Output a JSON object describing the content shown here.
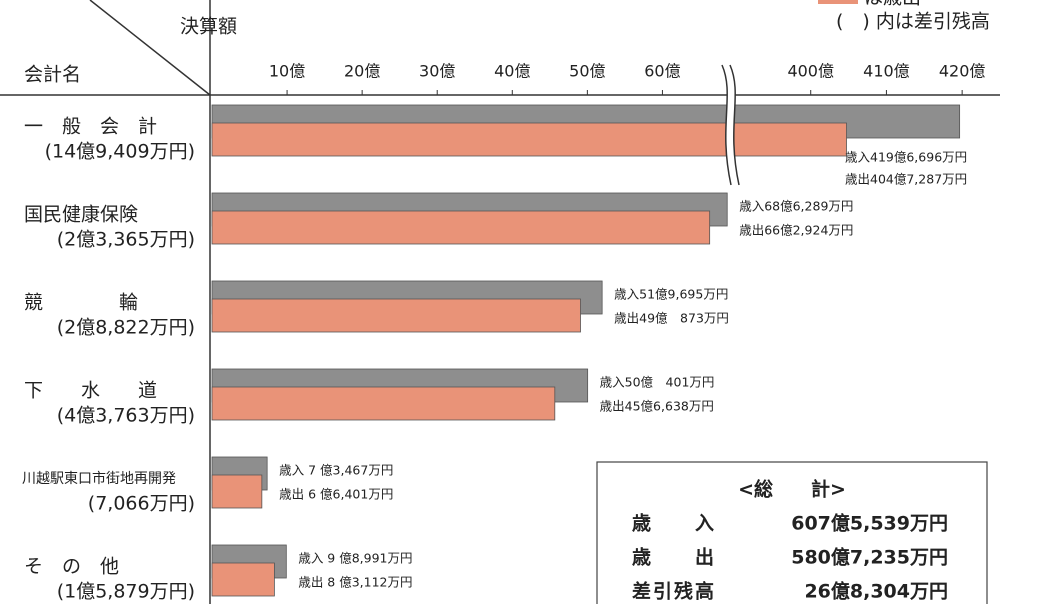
{
  "chart_data": {
    "type": "bar",
    "orientation": "horizontal",
    "value_axis_title": "決算額",
    "category_axis_title": "会計名",
    "legend_note": "は歳出",
    "note": "(　) 内は差引残高",
    "categories": [
      "一　般　会　計",
      "国民健康保険",
      "競　　　　輪",
      "下　　水　　道",
      "川越駅東口市街地再開発",
      "そ　の　他"
    ],
    "category_notes": [
      "(14億9,409万円)",
      "(2億3,365万円)",
      "(2億8,822万円)",
      "(4億3,763万円)",
      "(7,066万円)",
      "(1億5,879万円)"
    ],
    "series": [
      {
        "color": "#8e8e8e",
        "values": [
          419.6696,
          68.6289,
          51.9695,
          50.0401,
          7.3467,
          9.8991
        ],
        "value_labels": [
          "歳入419億6,696万円",
          "歳入68億6,289万円",
          "歳入51億9,695万円",
          "歳入50億　401万円",
          "歳入 7 億3,467万円",
          "歳入 9 億8,991万円"
        ]
      },
      {
        "color": "#e99378",
        "values": [
          404.7287,
          66.2924,
          49.0873,
          45.6638,
          6.6401,
          8.3112
        ],
        "value_labels": [
          "歳出404億7,287万円",
          "歳出66億2,924万円",
          "歳出49億　873万円",
          "歳出45億6,638万円",
          "歳出 6 億6,401万円",
          "歳出 8 億3,112万円"
        ]
      }
    ],
    "xlim": [
      0,
      425
    ],
    "x_break": [
      69,
      390
    ],
    "xticks": [
      {
        "value": 10,
        "label": "10億"
      },
      {
        "value": 20,
        "label": "20億"
      },
      {
        "value": 30,
        "label": "30億"
      },
      {
        "value": 40,
        "label": "40億"
      },
      {
        "value": 50,
        "label": "50億"
      },
      {
        "value": 60,
        "label": "60億"
      },
      {
        "value": 400,
        "label": "400億"
      },
      {
        "value": 410,
        "label": "410億"
      },
      {
        "value": 420,
        "label": "420億"
      }
    ],
    "total": {
      "title": "<総　　計>",
      "rows": [
        [
          "歳　　入",
          "607億5,539万円"
        ],
        [
          "歳　　出",
          "580億7,235万円"
        ],
        [
          "差引残高",
          "26億8,304万円"
        ]
      ]
    }
  }
}
